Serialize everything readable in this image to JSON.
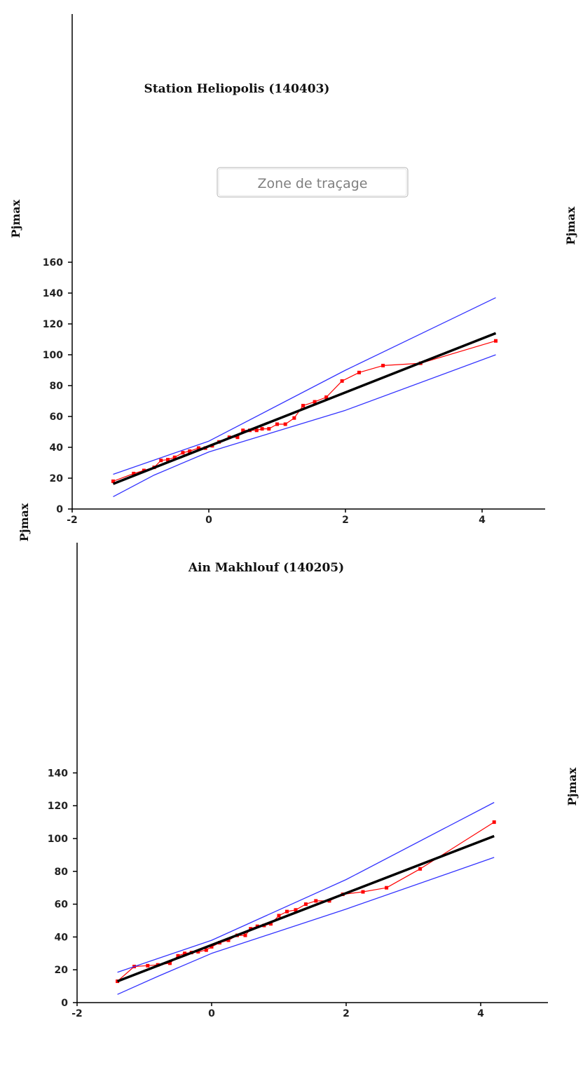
{
  "chart_data": [
    {
      "type": "line",
      "title": "Station Heliopolis (140403)",
      "ylabel": "Pjmax",
      "xlabel": "",
      "xlim": [
        -2,
        5
      ],
      "ylim": [
        0,
        160
      ],
      "x_ticks": [
        -2,
        0,
        2,
        4
      ],
      "y_ticks": [
        0,
        20,
        40,
        60,
        80,
        100,
        120,
        140,
        160
      ],
      "grid": false,
      "tooltip": "Zone de traçage",
      "series": [
        {
          "role": "observed",
          "color": "#ff0000",
          "points": [
            [
              -1.4,
              18
            ],
            [
              -1.1,
              23
            ],
            [
              -0.95,
              25
            ],
            [
              -0.8,
              27
            ],
            [
              -0.7,
              31.5
            ],
            [
              -0.6,
              32
            ],
            [
              -0.5,
              33.5
            ],
            [
              -0.38,
              36.5
            ],
            [
              -0.28,
              37.5
            ],
            [
              -0.15,
              39.5
            ],
            [
              -0.05,
              39.5
            ],
            [
              0.05,
              41
            ],
            [
              0.15,
              43.5
            ],
            [
              0.3,
              46.5
            ],
            [
              0.42,
              46.5
            ],
            [
              0.5,
              51
            ],
            [
              0.6,
              51
            ],
            [
              0.7,
              51
            ],
            [
              0.78,
              52
            ],
            [
              0.88,
              52
            ],
            [
              1.0,
              55
            ],
            [
              1.12,
              55
            ],
            [
              1.25,
              59
            ],
            [
              1.38,
              67
            ],
            [
              1.55,
              69.5
            ],
            [
              1.72,
              72.5
            ],
            [
              1.95,
              83
            ],
            [
              2.2,
              88.5
            ],
            [
              2.55,
              93
            ],
            [
              3.1,
              94.5
            ],
            [
              4.2,
              109
            ]
          ]
        },
        {
          "role": "fit",
          "color": "#000000",
          "points": [
            [
              -1.4,
              16.3
            ],
            [
              4.2,
              114
            ]
          ]
        },
        {
          "role": "upper-bound",
          "color": "#3333ff",
          "points": [
            [
              -1.4,
              22.5
            ],
            [
              0,
              44
            ],
            [
              2,
              90
            ],
            [
              4.2,
              137
            ]
          ]
        },
        {
          "role": "lower-bound",
          "color": "#3333ff",
          "points": [
            [
              -1.4,
              8
            ],
            [
              -0.8,
              22
            ],
            [
              0,
              37
            ],
            [
              2,
              64
            ],
            [
              4.2,
              100
            ]
          ]
        }
      ]
    },
    {
      "type": "line",
      "title": "Ain Makhlouf (140205)",
      "ylabel": "Pjmax",
      "xlabel": "",
      "xlim": [
        -2,
        5
      ],
      "ylim": [
        0,
        140
      ],
      "x_ticks": [
        -2,
        0,
        2,
        4
      ],
      "y_ticks": [
        0,
        20,
        40,
        60,
        80,
        100,
        120,
        140
      ],
      "grid": false,
      "series": [
        {
          "role": "observed",
          "color": "#ff0000",
          "points": [
            [
              -1.4,
              13
            ],
            [
              -1.15,
              22
            ],
            [
              -0.95,
              22.5
            ],
            [
              -0.8,
              23
            ],
            [
              -0.62,
              24
            ],
            [
              -0.5,
              28.5
            ],
            [
              -0.4,
              30
            ],
            [
              -0.3,
              30.5
            ],
            [
              -0.2,
              31
            ],
            [
              -0.08,
              32
            ],
            [
              0.0,
              34
            ],
            [
              0.12,
              36.5
            ],
            [
              0.25,
              38
            ],
            [
              0.38,
              41
            ],
            [
              0.5,
              41
            ],
            [
              0.58,
              45
            ],
            [
              0.68,
              46.5
            ],
            [
              0.78,
              47
            ],
            [
              0.88,
              48
            ],
            [
              1.0,
              53
            ],
            [
              1.12,
              55.5
            ],
            [
              1.25,
              56.5
            ],
            [
              1.4,
              60
            ],
            [
              1.55,
              62
            ],
            [
              1.75,
              62
            ],
            [
              1.95,
              66
            ],
            [
              2.25,
              67.5
            ],
            [
              2.6,
              70
            ],
            [
              3.1,
              81.5
            ],
            [
              4.2,
              110
            ]
          ]
        },
        {
          "role": "fit",
          "color": "#000000",
          "points": [
            [
              -1.4,
              13
            ],
            [
              4.2,
              101.5
            ]
          ]
        },
        {
          "role": "upper-bound",
          "color": "#3333ff",
          "points": [
            [
              -1.4,
              18.5
            ],
            [
              0,
              38
            ],
            [
              2,
              75
            ],
            [
              4.2,
              122
            ]
          ]
        },
        {
          "role": "lower-bound",
          "color": "#3333ff",
          "points": [
            [
              -1.4,
              5
            ],
            [
              -0.8,
              16
            ],
            [
              0,
              30
            ],
            [
              2,
              57
            ],
            [
              4.2,
              88.5
            ]
          ]
        }
      ]
    }
  ],
  "side_labels": [
    "Pjmax",
    "Pjmax"
  ]
}
